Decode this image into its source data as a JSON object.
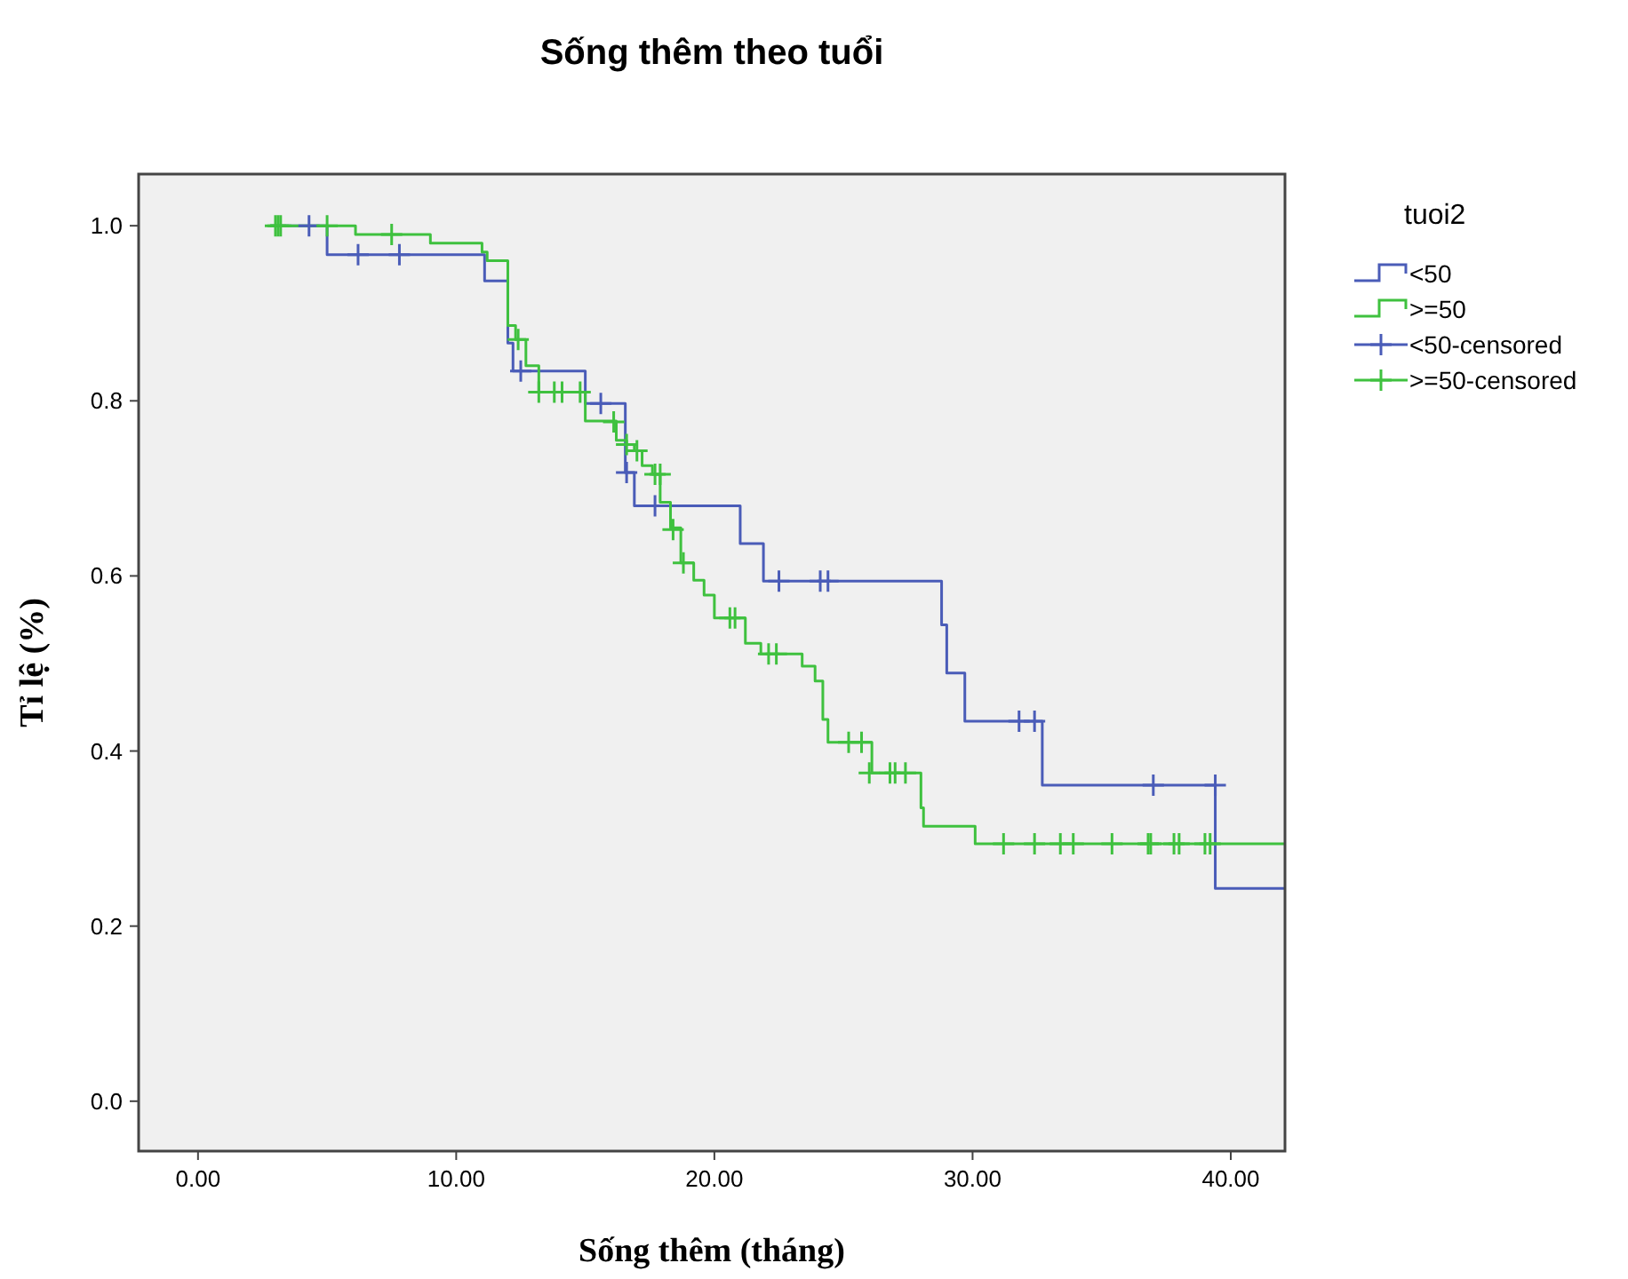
{
  "chart_data": {
    "type": "step",
    "title": "Sống thêm theo tuổi",
    "xlabel": "Sống thêm (tháng)",
    "ylabel": "Tỉ lệ (%)",
    "legend_title": "tuoi2",
    "legend": "right",
    "grid": false,
    "xlim": [
      -2.3,
      42.1
    ],
    "ylim": [
      -0.057,
      1.059
    ],
    "xticks": [
      {
        "value": 0,
        "label": "0.00"
      },
      {
        "value": 10,
        "label": "10.00"
      },
      {
        "value": 20,
        "label": "20.00"
      },
      {
        "value": 30,
        "label": "30.00"
      },
      {
        "value": 40,
        "label": "40.00"
      }
    ],
    "yticks": [
      {
        "value": 0,
        "label": "0.0"
      },
      {
        "value": 0.2,
        "label": "0.2"
      },
      {
        "value": 0.4,
        "label": "0.4"
      },
      {
        "value": 0.6,
        "label": "0.6"
      },
      {
        "value": 0.8,
        "label": "0.8"
      },
      {
        "value": 1,
        "label": "1.0"
      }
    ],
    "series": [
      {
        "name": "<50",
        "color": "#4a5cb8",
        "x": [
          2.8,
          5.0,
          11.1,
          12.0,
          12.2,
          15.0,
          16.55,
          16.9,
          21.0,
          21.9,
          28.8,
          29.0,
          29.7,
          32.7,
          39.4,
          42.1
        ],
        "values": [
          1.0,
          0.967,
          0.937,
          0.866,
          0.834,
          0.797,
          0.718,
          0.68,
          0.637,
          0.594,
          0.544,
          0.489,
          0.434,
          0.361,
          0.243,
          0.243
        ]
      },
      {
        "name": ">=50",
        "color": "#3fc13f",
        "x": [
          2.8,
          6.1,
          9.0,
          11.0,
          11.2,
          12.0,
          12.3,
          12.7,
          13.2,
          15.0,
          16.2,
          16.6,
          16.9,
          17.2,
          17.6,
          17.9,
          18.3,
          18.7,
          19.2,
          19.6,
          20.0,
          21.2,
          21.8,
          23.4,
          23.9,
          24.2,
          24.4,
          26.1,
          28.0,
          28.1,
          30.1,
          42.1
        ],
        "values": [
          1.0,
          0.99,
          0.98,
          0.97,
          0.96,
          0.886,
          0.87,
          0.84,
          0.81,
          0.777,
          0.755,
          0.75,
          0.743,
          0.726,
          0.716,
          0.684,
          0.655,
          0.615,
          0.595,
          0.578,
          0.552,
          0.523,
          0.511,
          0.497,
          0.48,
          0.436,
          0.41,
          0.375,
          0.335,
          0.314,
          0.294,
          0.294
        ]
      },
      {
        "name": "<50-censored",
        "type": "scatter",
        "marker": "cross",
        "color": "#4a5cb8",
        "x": [
          4.3,
          6.2,
          7.8,
          12.5,
          15.6,
          16.6,
          17.7,
          22.5,
          24.1,
          24.4,
          31.8,
          32.4,
          37.0,
          39.4
        ],
        "values": [
          1.0,
          0.967,
          0.967,
          0.834,
          0.797,
          0.718,
          0.68,
          0.594,
          0.594,
          0.594,
          0.434,
          0.434,
          0.361,
          0.361
        ]
      },
      {
        "name": ">=50-censored",
        "type": "scatter",
        "marker": "cross",
        "color": "#3fc13f",
        "x": [
          3.0,
          3.1,
          3.2,
          5.0,
          7.5,
          12.4,
          13.2,
          13.8,
          14.1,
          14.8,
          16.1,
          16.6,
          17.0,
          17.7,
          17.9,
          18.4,
          18.8,
          20.6,
          20.8,
          22.1,
          22.4,
          25.2,
          25.7,
          26.0,
          26.8,
          27.0,
          27.4,
          31.2,
          32.4,
          33.4,
          33.9,
          35.4,
          36.8,
          36.9,
          37.8,
          38.0,
          39.0,
          39.2
        ],
        "values": [
          1.0,
          1.0,
          1.0,
          1.0,
          0.99,
          0.87,
          0.81,
          0.81,
          0.81,
          0.81,
          0.776,
          0.75,
          0.743,
          0.716,
          0.716,
          0.653,
          0.615,
          0.552,
          0.552,
          0.511,
          0.511,
          0.41,
          0.41,
          0.375,
          0.375,
          0.375,
          0.375,
          0.294,
          0.294,
          0.294,
          0.294,
          0.294,
          0.294,
          0.294,
          0.294,
          0.294,
          0.294,
          0.294
        ]
      }
    ]
  }
}
